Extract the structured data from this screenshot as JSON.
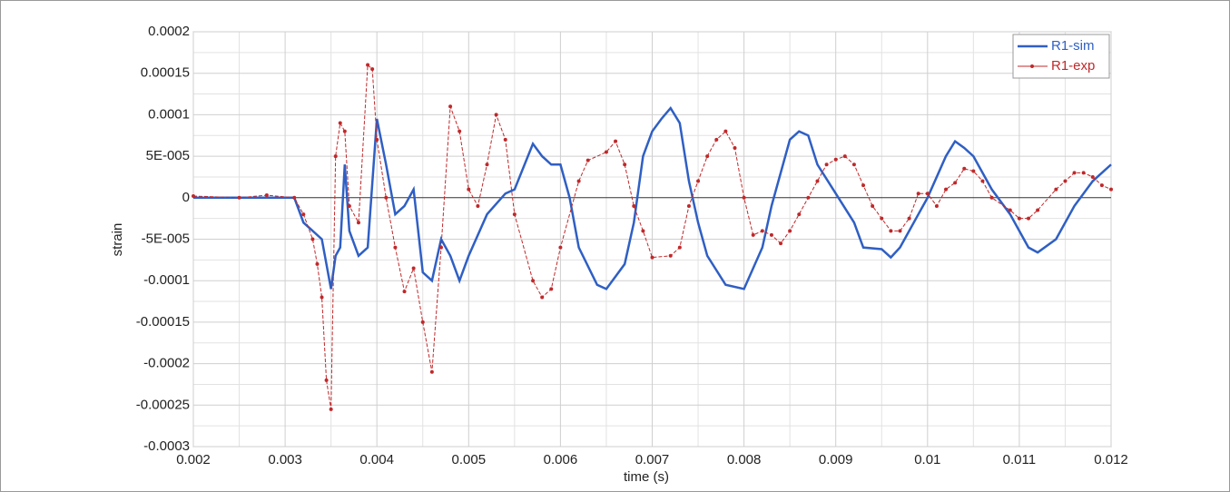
{
  "chart_data": {
    "type": "line",
    "xlabel": "time (s)",
    "ylabel": "strain",
    "xlim": [
      0.002,
      0.012
    ],
    "xticks": [
      0.002,
      0.003,
      0.004,
      0.005,
      0.006,
      0.007,
      0.008,
      0.009,
      0.01,
      0.011,
      0.012
    ],
    "ylim": [
      -0.0003,
      0.0002
    ],
    "yticks": [
      -0.0003,
      -0.00025,
      -0.0002,
      -0.00015,
      -0.0001,
      {
        "value": -5e-05,
        "label": "-5E-005"
      },
      0,
      {
        "value": 5e-05,
        "label": "5E-005"
      },
      0.0001,
      0.00015,
      0.0002
    ],
    "grid": true,
    "legend": "upper right",
    "series": [
      {
        "name": "R1-sim",
        "color": "#2f5fc4",
        "x": [
          0.002,
          0.0029,
          0.0031,
          0.0032,
          0.0033,
          0.0034,
          0.0035,
          0.00355,
          0.0036,
          0.00365,
          0.0037,
          0.0038,
          0.0039,
          0.004,
          0.0041,
          0.0042,
          0.0043,
          0.0044,
          0.0045,
          0.0046,
          0.0047,
          0.0048,
          0.0049,
          0.005,
          0.0052,
          0.0054,
          0.0055,
          0.0057,
          0.0058,
          0.0059,
          0.006,
          0.0061,
          0.0062,
          0.0064,
          0.0065,
          0.0067,
          0.0068,
          0.0069,
          0.007,
          0.0071,
          0.0072,
          0.0073,
          0.0074,
          0.0075,
          0.0076,
          0.0078,
          0.008,
          0.0082,
          0.0083,
          0.0084,
          0.0085,
          0.0086,
          0.0087,
          0.0088,
          0.009,
          0.0092,
          0.0093,
          0.0095,
          0.0096,
          0.0097,
          0.0099,
          0.01,
          0.0102,
          0.0103,
          0.0104,
          0.0105,
          0.0107,
          0.0109,
          0.011,
          0.0111,
          0.0112,
          0.0114,
          0.0116,
          0.0118,
          0.012
        ],
        "values": [
          0,
          0,
          0,
          -3e-05,
          -4e-05,
          -5e-05,
          -0.00011,
          -7e-05,
          -6e-05,
          4e-05,
          -4e-05,
          -7e-05,
          -6e-05,
          9.5e-05,
          4e-05,
          -2e-05,
          -1e-05,
          1e-05,
          -9e-05,
          -0.0001,
          -5e-05,
          -7e-05,
          -0.0001,
          -7e-05,
          -2e-05,
          5e-06,
          1e-05,
          6.5e-05,
          5e-05,
          4e-05,
          4e-05,
          0,
          -6e-05,
          -0.000105,
          -0.00011,
          -8e-05,
          -3e-05,
          5e-05,
          8e-05,
          9.5e-05,
          0.000108,
          9e-05,
          2e-05,
          -3e-05,
          -7e-05,
          -0.000105,
          -0.00011,
          -6e-05,
          -1e-05,
          3e-05,
          7e-05,
          8e-05,
          7.5e-05,
          4e-05,
          5e-06,
          -3e-05,
          -6e-05,
          -6.2e-05,
          -7.2e-05,
          -6e-05,
          -2e-05,
          0,
          5e-05,
          6.8e-05,
          6e-05,
          5e-05,
          1e-05,
          -2e-05,
          -4e-05,
          -6e-05,
          -6.6e-05,
          -5e-05,
          -1e-05,
          2e-05,
          4e-05
        ]
      },
      {
        "name": "R1-exp",
        "color": "#c0282a",
        "x": [
          0.002,
          0.0025,
          0.0028,
          0.0031,
          0.0032,
          0.0033,
          0.00335,
          0.0034,
          0.00345,
          0.0035,
          0.00355,
          0.0036,
          0.00365,
          0.0037,
          0.0038,
          0.0039,
          0.00395,
          0.004,
          0.0041,
          0.0042,
          0.0043,
          0.0044,
          0.0045,
          0.0046,
          0.0047,
          0.0048,
          0.0049,
          0.005,
          0.0051,
          0.0052,
          0.0053,
          0.0054,
          0.0055,
          0.0057,
          0.0058,
          0.0059,
          0.006,
          0.0062,
          0.0063,
          0.0065,
          0.0066,
          0.0067,
          0.0068,
          0.0069,
          0.007,
          0.0072,
          0.0073,
          0.0074,
          0.0075,
          0.0076,
          0.0077,
          0.0078,
          0.0079,
          0.008,
          0.0081,
          0.0082,
          0.0083,
          0.0084,
          0.0085,
          0.0086,
          0.0087,
          0.0088,
          0.0089,
          0.009,
          0.0091,
          0.0092,
          0.0093,
          0.0094,
          0.0095,
          0.0096,
          0.0097,
          0.0098,
          0.0099,
          0.01,
          0.0101,
          0.0102,
          0.0103,
          0.0104,
          0.0105,
          0.0106,
          0.0107,
          0.0109,
          0.011,
          0.0111,
          0.0112,
          0.0114,
          0.0115,
          0.0116,
          0.0117,
          0.0118,
          0.0119,
          0.012
        ],
        "values": [
          2e-06,
          0,
          3e-06,
          0,
          -2e-05,
          -5e-05,
          -8e-05,
          -0.00012,
          -0.00022,
          -0.000255,
          5e-05,
          9e-05,
          8e-05,
          -1e-05,
          -3e-05,
          0.00016,
          0.000155,
          7e-05,
          0,
          -6e-05,
          -0.000113,
          -8.5e-05,
          -0.00015,
          -0.00021,
          -6e-05,
          0.00011,
          8e-05,
          1e-05,
          -1e-05,
          4e-05,
          0.0001,
          7e-05,
          -2e-05,
          -0.0001,
          -0.00012,
          -0.00011,
          -6e-05,
          2e-05,
          4.5e-05,
          5.5e-05,
          6.8e-05,
          4e-05,
          -1e-05,
          -4e-05,
          -7.2e-05,
          -7e-05,
          -6e-05,
          -1e-05,
          2e-05,
          5e-05,
          7e-05,
          8e-05,
          6e-05,
          0,
          -4.5e-05,
          -4e-05,
          -4.5e-05,
          -5.5e-05,
          -4e-05,
          -2e-05,
          0,
          2e-05,
          4e-05,
          4.6e-05,
          5e-05,
          4e-05,
          1.5e-05,
          -1e-05,
          -2.5e-05,
          -4e-05,
          -4e-05,
          -2.5e-05,
          5e-06,
          5e-06,
          -1e-05,
          1e-05,
          1.8e-05,
          3.5e-05,
          3.2e-05,
          2e-05,
          0,
          -1.5e-05,
          -2.5e-05,
          -2.5e-05,
          -1.5e-05,
          1e-05,
          2e-05,
          3e-05,
          3e-05,
          2.5e-05,
          1.5e-05,
          1e-05
        ]
      }
    ]
  }
}
